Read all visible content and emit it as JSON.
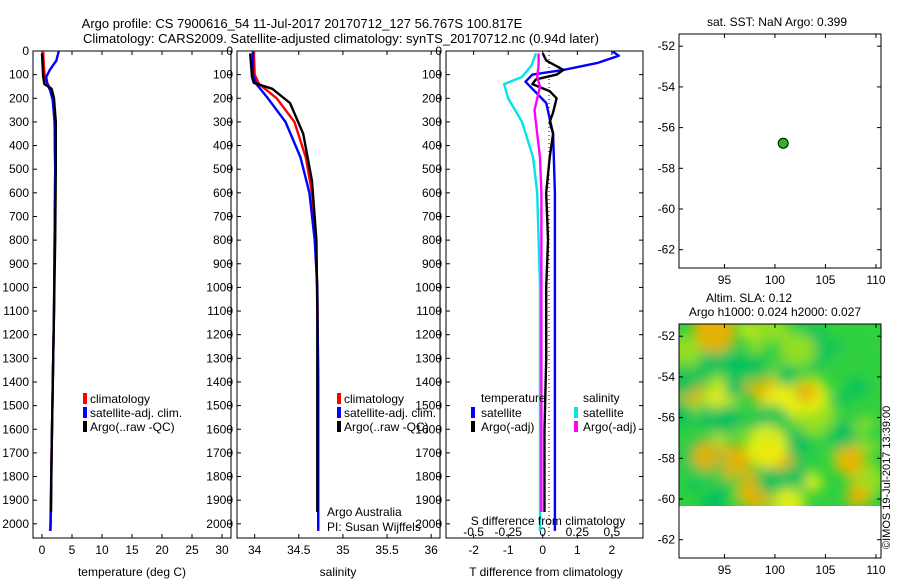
{
  "header": {
    "title_line1": "Argo profile: CS 7900616_54 11-Jul-2017 20170712_127 56.767S 100.817E",
    "title_line2": "Climatology: CARS2009. Satellite-adjusted climatology: synTS_20170712.nc (0.94d later)"
  },
  "colors": {
    "climatology": "#ff0000",
    "satellite": "#0000ff",
    "argo": "#000000",
    "sat_salinity": "#00e5e5",
    "argo_salinity": "#ff00ff",
    "float_marker": "#22bb22"
  },
  "chart_data": [
    {
      "id": "temperature",
      "type": "line",
      "xlabel": "temperature (deg C)",
      "ylabel": "",
      "xlim": [
        -1.5,
        31.5
      ],
      "ylim": [
        2060,
        0
      ],
      "xticks": [
        0,
        5,
        10,
        15,
        20,
        25,
        30
      ],
      "yticks": [
        0,
        100,
        200,
        300,
        400,
        500,
        600,
        700,
        800,
        900,
        1000,
        1100,
        1200,
        1300,
        1400,
        1500,
        1600,
        1700,
        1800,
        1900,
        2000
      ],
      "legend": [
        "climatology",
        "satellite-adj. clim.",
        "Argo(..raw -QC)"
      ],
      "series": [
        {
          "name": "climatology",
          "color": "#ff0000",
          "points": [
            [
              0.2,
              0
            ],
            [
              0.3,
              60
            ],
            [
              0.5,
              120
            ],
            [
              1.2,
              150
            ],
            [
              1.8,
              200
            ],
            [
              2.1,
              300
            ],
            [
              2.2,
              500
            ],
            [
              2.1,
              800
            ],
            [
              2.0,
              1100
            ],
            [
              1.8,
              1400
            ],
            [
              1.6,
              1700
            ],
            [
              1.4,
              2000
            ],
            [
              1.35,
              2030
            ]
          ]
        },
        {
          "name": "satellite-adj. clim.",
          "color": "#0000ff",
          "points": [
            [
              2.8,
              0
            ],
            [
              2.4,
              40
            ],
            [
              1.3,
              80
            ],
            [
              0.7,
              110
            ],
            [
              0.9,
              140
            ],
            [
              1.4,
              170
            ],
            [
              1.8,
              210
            ],
            [
              2.1,
              300
            ],
            [
              2.2,
              500
            ],
            [
              2.1,
              800
            ],
            [
              2.0,
              1100
            ],
            [
              1.8,
              1400
            ],
            [
              1.6,
              1700
            ],
            [
              1.45,
              2000
            ],
            [
              1.4,
              2030
            ]
          ]
        },
        {
          "name": "Argo(..raw -QC)",
          "color": "#000000",
          "points": [
            [
              0.0,
              10
            ],
            [
              0.1,
              60
            ],
            [
              0.2,
              110
            ],
            [
              0.4,
              140
            ],
            [
              1.6,
              160
            ],
            [
              2.0,
              200
            ],
            [
              2.3,
              300
            ],
            [
              2.3,
              500
            ],
            [
              2.2,
              800
            ],
            [
              2.0,
              1100
            ],
            [
              1.8,
              1400
            ],
            [
              1.6,
              1700
            ],
            [
              1.5,
              1950
            ]
          ]
        }
      ]
    },
    {
      "id": "salinity",
      "type": "line",
      "xlabel": "salinity",
      "ylabel": "",
      "xlim": [
        33.8,
        36.1
      ],
      "ylim": [
        2060,
        0
      ],
      "xticks": [
        34,
        34.5,
        35,
        35.5,
        36
      ],
      "yticks": [
        0,
        100,
        200,
        300,
        400,
        500,
        600,
        700,
        800,
        900,
        1000,
        1100,
        1200,
        1300,
        1400,
        1500,
        1600,
        1700,
        1800,
        1900,
        2000
      ],
      "legend": [
        "climatology",
        "satellite-adj. clim.",
        "Argo(..raw -QC)"
      ],
      "annotations": [
        "Argo Australia",
        "PI: Susan Wijffels"
      ],
      "series": [
        {
          "name": "climatology",
          "color": "#ff0000",
          "points": [
            [
              33.99,
              0
            ],
            [
              34.0,
              100
            ],
            [
              34.05,
              140
            ],
            [
              34.25,
              200
            ],
            [
              34.45,
              300
            ],
            [
              34.58,
              450
            ],
            [
              34.65,
              600
            ],
            [
              34.69,
              800
            ],
            [
              34.71,
              1000
            ],
            [
              34.72,
              1400
            ],
            [
              34.72,
              1800
            ],
            [
              34.72,
              2030
            ]
          ]
        },
        {
          "name": "satellite-adj. clim.",
          "color": "#0000ff",
          "points": [
            [
              33.98,
              0
            ],
            [
              33.98,
              100
            ],
            [
              34.02,
              140
            ],
            [
              34.15,
              200
            ],
            [
              34.35,
              300
            ],
            [
              34.52,
              450
            ],
            [
              34.62,
              600
            ],
            [
              34.68,
              800
            ],
            [
              34.71,
              1000
            ],
            [
              34.72,
              1400
            ],
            [
              34.72,
              1800
            ],
            [
              34.72,
              2030
            ]
          ]
        },
        {
          "name": "Argo(..raw -QC)",
          "color": "#000000",
          "points": [
            [
              33.95,
              10
            ],
            [
              33.96,
              60
            ],
            [
              33.97,
              110
            ],
            [
              33.99,
              135
            ],
            [
              34.2,
              160
            ],
            [
              34.4,
              220
            ],
            [
              34.55,
              350
            ],
            [
              34.65,
              550
            ],
            [
              34.7,
              800
            ],
            [
              34.71,
              1100
            ],
            [
              34.71,
              1500
            ],
            [
              34.71,
              1900
            ],
            [
              34.71,
              1950
            ]
          ]
        }
      ]
    },
    {
      "id": "difference",
      "type": "line",
      "xlabel": "T difference from climatology",
      "x2label": "S difference from climatology",
      "ylabel": "",
      "xlim": [
        -2.8,
        2.9
      ],
      "x2lim": [
        -0.7,
        0.725
      ],
      "ylim": [
        2060,
        0
      ],
      "xticks": [
        -2,
        -1,
        0,
        1,
        2
      ],
      "x2ticks": [
        -0.5,
        -0.25,
        0,
        0.25,
        0.5
      ],
      "yticks": [
        0,
        100,
        200,
        300,
        400,
        500,
        600,
        700,
        800,
        900,
        1000,
        1100,
        1200,
        1300,
        1400,
        1500,
        1600,
        1700,
        1800,
        1900,
        2000
      ],
      "legend_groups": [
        {
          "heading": "temperature",
          "items": [
            "satellite",
            "Argo(-adj)"
          ]
        },
        {
          "heading": "salinity",
          "items": [
            "satellite",
            "Argo(-adj)"
          ]
        }
      ],
      "series": [
        {
          "name": "temperature satellite",
          "color": "#0000ff",
          "scale": "T",
          "points": [
            [
              2.0,
              0
            ],
            [
              2.2,
              20
            ],
            [
              1.6,
              50
            ],
            [
              0.6,
              80
            ],
            [
              -0.3,
              100
            ],
            [
              -0.5,
              130
            ],
            [
              -0.3,
              160
            ],
            [
              0.1,
              220
            ],
            [
              0.3,
              350
            ],
            [
              0.35,
              600
            ],
            [
              0.35,
              900
            ],
            [
              0.35,
              1200
            ],
            [
              0.35,
              1500
            ],
            [
              0.35,
              1800
            ],
            [
              0.35,
              2030
            ]
          ]
        },
        {
          "name": "temperature Argo(-adj)",
          "color": "#000000",
          "scale": "T",
          "points": [
            [
              0.0,
              10
            ],
            [
              0.1,
              40
            ],
            [
              0.6,
              80
            ],
            [
              0.4,
              100
            ],
            [
              -0.2,
              120
            ],
            [
              -0.3,
              140
            ],
            [
              0.2,
              170
            ],
            [
              0.4,
              200
            ],
            [
              0.3,
              260
            ],
            [
              0.2,
              300
            ],
            [
              0.3,
              350
            ],
            [
              0.2,
              450
            ],
            [
              0.1,
              600
            ],
            [
              0.15,
              800
            ],
            [
              0.1,
              1000
            ],
            [
              0.1,
              1300
            ],
            [
              0.05,
              1600
            ],
            [
              0.05,
              1950
            ]
          ]
        },
        {
          "name": "salinity satellite",
          "color": "#00e5e5",
          "scale": "S",
          "points": [
            [
              -0.05,
              10
            ],
            [
              -0.08,
              60
            ],
            [
              -0.15,
              110
            ],
            [
              -0.28,
              140
            ],
            [
              -0.25,
              200
            ],
            [
              -0.15,
              300
            ],
            [
              -0.07,
              450
            ],
            [
              -0.04,
              600
            ],
            [
              -0.03,
              800
            ],
            [
              -0.02,
              1000
            ],
            [
              -0.02,
              1300
            ],
            [
              -0.02,
              1600
            ],
            [
              -0.02,
              2030
            ]
          ]
        },
        {
          "name": "salinity Argo(-adj)",
          "color": "#ff00ff",
          "scale": "S",
          "points": [
            [
              -0.03,
              10
            ],
            [
              -0.03,
              60
            ],
            [
              -0.04,
              110
            ],
            [
              -0.02,
              150
            ],
            [
              -0.06,
              250
            ],
            [
              -0.04,
              350
            ],
            [
              -0.02,
              450
            ],
            [
              -0.01,
              600
            ],
            [
              -0.01,
              900
            ],
            [
              -0.01,
              1300
            ],
            [
              -0.01,
              1600
            ],
            [
              -0.01,
              1950
            ]
          ]
        }
      ]
    },
    {
      "id": "position",
      "type": "scatter",
      "title": "sat. SST: NaN Argo: 0.399",
      "xlim": [
        90.5,
        110.5
      ],
      "ylim": [
        -62.9,
        -51.4
      ],
      "xticks": [
        95,
        100,
        105,
        110
      ],
      "yticks": [
        -52,
        -54,
        -56,
        -58,
        -60,
        -62
      ],
      "points": [
        [
          100.817,
          -56.767
        ]
      ]
    },
    {
      "id": "sla",
      "type": "heatmap",
      "title_line1": "Altim. SLA: 0.12",
      "title_line2": "Argo h1000: 0.024 h2000: 0.027",
      "xlim": [
        90.5,
        110.5
      ],
      "ylim": [
        -62.9,
        -51.4
      ],
      "data_ylim": [
        -60,
        -51.4
      ],
      "xticks": [
        95,
        100,
        105,
        110
      ],
      "yticks": [
        -52,
        -54,
        -56,
        -58,
        -60,
        -62
      ],
      "colormap": [
        "#00c060",
        "#30d040",
        "#a0e020",
        "#f0f010",
        "#f0b000"
      ],
      "stamp": "©IMOS 19-Jul-2017 13:39:00"
    }
  ]
}
